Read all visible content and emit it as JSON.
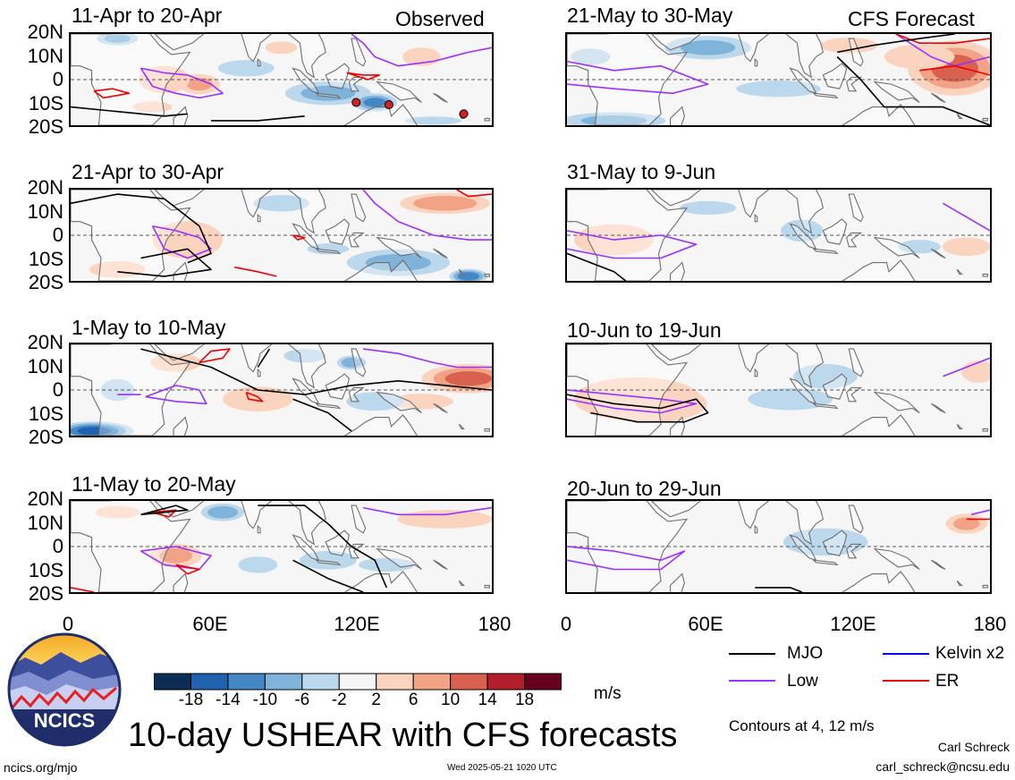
{
  "figure": {
    "main_title": "10-day USHEAR with CFS forecasts",
    "left_header": "Observed",
    "right_header": "CFS Forecast",
    "units": "m/s",
    "contour_note": "Contours at 4, 12 m/s",
    "author": "Carl Schreck",
    "email": "carl_schreck@ncsu.edu",
    "website": "ncics.org/mjo",
    "timestamp": "Wed 2025-05-21 1020 UTC",
    "logo_text": "NCICS"
  },
  "y_ticks": [
    "20N",
    "10N",
    "0",
    "10S",
    "20S"
  ],
  "x_ticks": [
    "0",
    "60E",
    "120E",
    "180"
  ],
  "panels": [
    {
      "title": "11-Apr to 20-Apr",
      "column": "left"
    },
    {
      "title": "21-Apr to 30-Apr",
      "column": "left"
    },
    {
      "title": "1-May to 10-May",
      "column": "left"
    },
    {
      "title": "11-May to 20-May",
      "column": "left"
    },
    {
      "title": "21-May to 30-May",
      "column": "right"
    },
    {
      "title": "31-May to 9-Jun",
      "column": "right"
    },
    {
      "title": "10-Jun to 19-Jun",
      "column": "right"
    },
    {
      "title": "20-Jun to 29-Jun",
      "column": "right"
    }
  ],
  "colorbar": {
    "labels": [
      "-18",
      "-14",
      "-10",
      "-6",
      "-2",
      "2",
      "6",
      "10",
      "14",
      "18"
    ],
    "colors": [
      "#0b2d55",
      "#1f63ae",
      "#4387c4",
      "#7fb3d9",
      "#bcd8ec",
      "#f6f6f6",
      "#fbd4c0",
      "#f2a285",
      "#d8614f",
      "#b11f2d",
      "#67001f"
    ]
  },
  "legend": [
    {
      "label": "MJO",
      "color": "#000000"
    },
    {
      "label": "Kelvin x2",
      "color": "#0000ee"
    },
    {
      "label": "Low",
      "color": "#9b30ff"
    },
    {
      "label": "ER",
      "color": "#ee0000"
    }
  ]
}
